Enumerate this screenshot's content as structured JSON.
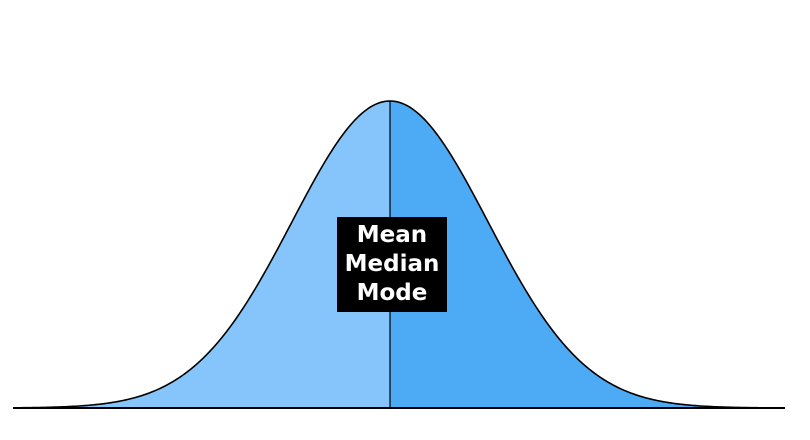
{
  "labels": [
    "Mean",
    "Median",
    "Mode"
  ],
  "colors": {
    "left_fill": "#86c5fb",
    "right_fill": "#4daaf5",
    "outline": "#000000",
    "label_background": "#000000",
    "label_text": "#ffffff"
  }
}
